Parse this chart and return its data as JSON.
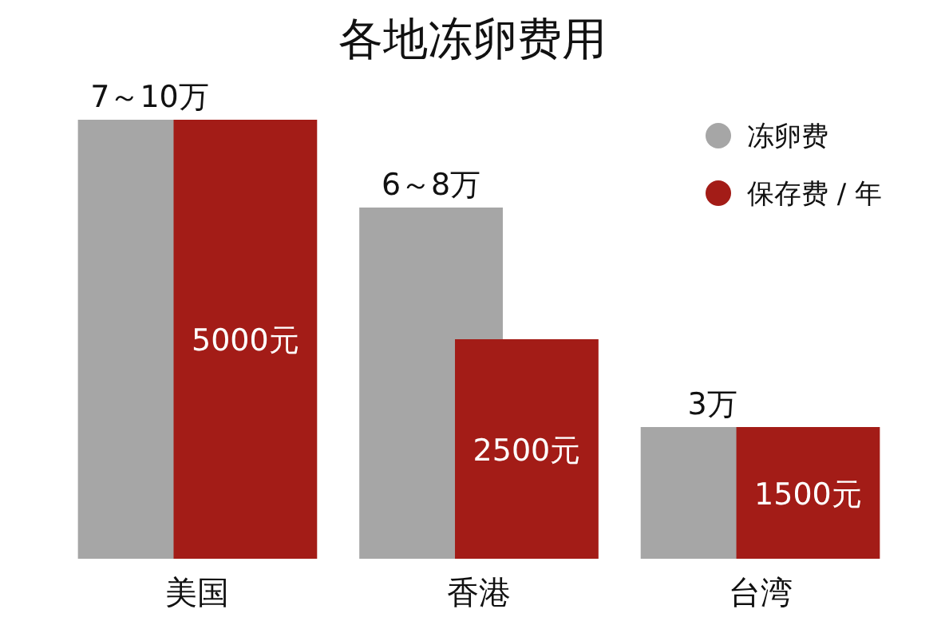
{
  "chart_data": {
    "type": "bar",
    "title": "各地冻卵费用",
    "categories": [
      "美国",
      "香港",
      "台湾"
    ],
    "legend": "top right",
    "marker": "circle",
    "series": [
      {
        "name": "冻卵费",
        "color": "#a6a6a6",
        "values": [
          10,
          8,
          3
        ],
        "value_labels": [
          "7～10万",
          "6～8万",
          "3万"
        ]
      },
      {
        "name": "保存费 / 年",
        "color": "#a31c17",
        "axis": "y2",
        "values": [
          5000,
          2500,
          1500
        ],
        "value_labels": [
          "5000元",
          "2500元",
          "1500元"
        ]
      }
    ]
  }
}
